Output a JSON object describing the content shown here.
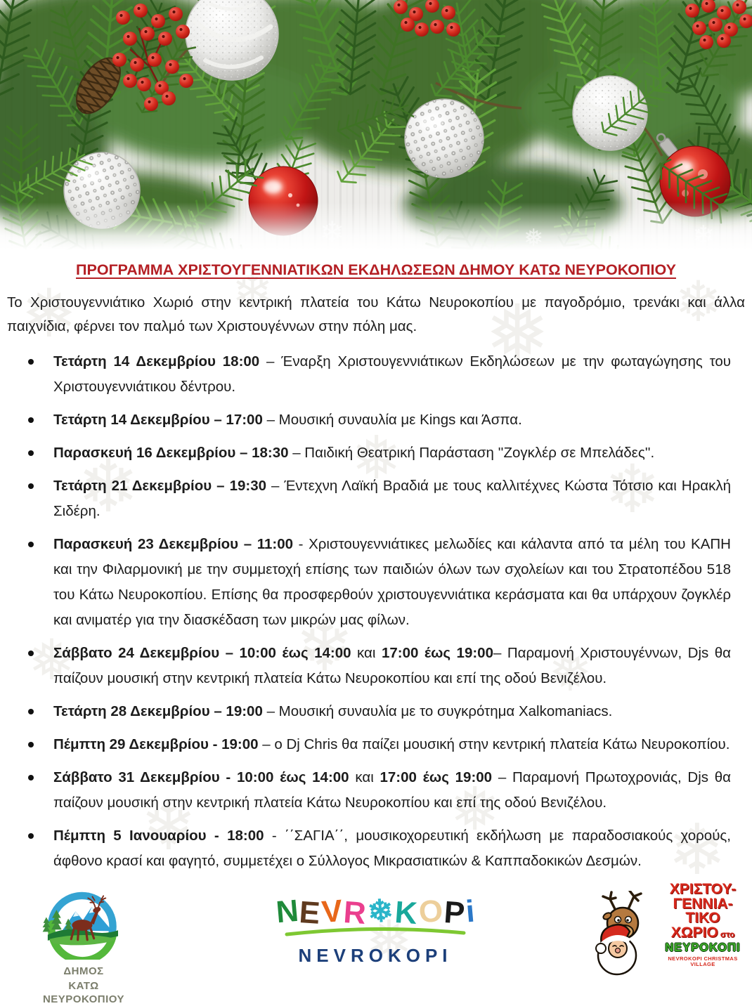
{
  "document": {
    "title": "ΠΡΟΓΡΑΜΜΑ ΧΡΙΣΤΟΥΓΕΝΝΙΑΤΙΚΩΝ ΕΚΔΗΛΩΣΕΩΝ ΔΗΜΟΥ ΚΑΤΩ ΝΕΥΡΟΚΟΠΙΟΥ",
    "intro": "Το Χριστουγεννιάτικο Χωριό στην κεντρική πλατεία του Κάτω Νευροκοπίου με παγοδρόμιο, τρενάκι και άλλα παιχνίδια,  φέρνει τον παλμό των Χριστουγέννων στην πόλη μας."
  },
  "theme": {
    "title_color": "#b41f24",
    "text_color": "#1c1c1c",
    "fir_green_dark": "#2d5a1e",
    "fir_green": "#3e7224",
    "fir_green_light": "#61a13a",
    "bauble_red": "#c11515",
    "bauble_silver": "#d9d9d5",
    "berry_red": "#c01310"
  },
  "events": [
    {
      "segments": [
        {
          "text": "Τετάρτη 14 Δεκεμβρίου 18:00",
          "bold": true
        },
        {
          "text": " – Έναρξη Χριστουγεννιάτικων Εκδηλώσεων με την φωταγώγησης του Χριστουγεννιάτικου δέντρου.",
          "bold": false
        }
      ]
    },
    {
      "segments": [
        {
          "text": "Τετάρτη 14 Δεκεμβρίου – 17:00",
          "bold": true
        },
        {
          "text": " – Μουσική συναυλία με Kings και Άσπα.",
          "bold": false
        }
      ]
    },
    {
      "segments": [
        {
          "text": "Παρασκευή 16 Δεκεμβρίου – 18:30",
          "bold": true
        },
        {
          "text": " – Παιδική Θεατρική Παράσταση ''Ζογκλέρ σε Μπελάδες''.",
          "bold": false
        }
      ]
    },
    {
      "segments": [
        {
          "text": "Τετάρτη 21 Δεκεμβρίου – 19:30",
          "bold": true
        },
        {
          "text": " – Έντεχνη Λαϊκή Βραδιά με τους καλλιτέχνες Κώστα Τότσιο και Ηρακλή Σιδέρη.",
          "bold": false
        }
      ]
    },
    {
      "segments": [
        {
          "text": "Παρασκευή 23 Δεκεμβρίου – 11:00",
          "bold": true
        },
        {
          "text": "  - Χριστουγεννιάτικες μελωδίες και κάλαντα από τα μέλη του ΚΑΠΗ και την Φιλαρμονική με την συμμετοχή επίσης των παιδιών όλων των σχολείων και του Στρατοπέδου 518 του Κάτω Νευροκοπίου. Επίσης θα προσφερθούν χριστουγεννιάτικα κεράσματα και θα υπάρχουν ζογκλέρ και ανιματέρ για την διασκέδαση των μικρών μας φίλων.",
          "bold": false
        }
      ]
    },
    {
      "segments": [
        {
          "text": "Σάββατο 24 Δεκεμβρίου – 10:00 έως 14:00",
          "bold": true
        },
        {
          "text": " και ",
          "bold": false
        },
        {
          "text": "17:00  έως 19:00",
          "bold": true
        },
        {
          "text": "–  Παραμονή Χριστουγέννων, Djs θα παίζουν μουσική στην κεντρική πλατεία Κάτω Νευροκοπίου και επί της οδού Βενιζέλου.",
          "bold": false
        }
      ]
    },
    {
      "segments": [
        {
          "text": "Τετάρτη 28 Δεκεμβρίου – 19:00",
          "bold": true
        },
        {
          "text": "  – Μουσική συναυλία με το συγκρότημα Xalkomaniacs.",
          "bold": false
        }
      ]
    },
    {
      "segments": [
        {
          "text": "Πέμπτη 29 Δεκεμβρίου  - 19:00",
          "bold": true
        },
        {
          "text": "  – ο Dj Chris θα παίζει μουσική στην κεντρική πλατεία Κάτω Νευροκοπίου.",
          "bold": false
        }
      ]
    },
    {
      "segments": [
        {
          "text": "Σάββατο 31 Δεκεμβρίου - 10:00 έως 14:00",
          "bold": true
        },
        {
          "text": " και ",
          "bold": false
        },
        {
          "text": "17:00  έως 19:00",
          "bold": true
        },
        {
          "text": " –  Παραμονή Πρωτοχρονιάς,  Djs θα παίζουν μουσική στην κεντρική πλατεία Κάτω Νευροκοπίου και επί της οδού Βενιζέλου.",
          "bold": false
        }
      ]
    },
    {
      "segments": [
        {
          "text": "Πέμπτη 5 Ιανουαρίου  -  18:00",
          "bold": true
        },
        {
          "text": "  -  ΄΄ΣΑΓΙΑ΄΄, μουσικοχορευτική εκδήλωση με παραδοσιακούς χορούς, άφθονο κρασί και φαγητό, συμμετέχει ο Σύλλογος Μικρασιατικών & Καππαδοκικών Δεσμών.",
          "bold": false
        }
      ]
    }
  ],
  "footer": {
    "municipality_logo": {
      "line1": "ΔΗΜΟΣ",
      "line2": "ΚΑΤΩ ΝΕΥΡΟΚΟΠΙΟΥ"
    },
    "nevrokopi_logo": {
      "letters": [
        {
          "ch": "N",
          "color": "#1f8a3a"
        },
        {
          "ch": "E",
          "color": "#5f3a1f"
        },
        {
          "ch": "V",
          "color": "#e8671a"
        },
        {
          "ch": "R",
          "color": "#ea3f8e"
        },
        {
          "ch": "❄",
          "color": "#2ab5c9"
        },
        {
          "ch": "K",
          "color": "#19a89b"
        },
        {
          "ch": "O",
          "color": "#edcf9b"
        },
        {
          "ch": "P",
          "color": "#1a1a1a"
        },
        {
          "ch": "i",
          "color": "#2b78c8"
        }
      ],
      "wordmark": "NEVROKOPI"
    },
    "christmas_village_logo": {
      "lines": [
        "ΧΡΙΣΤΟΥ-",
        "ΓΕΝΝΙΑ-",
        "ΤΙΚΟ",
        "ΧΩΡΙΟ"
      ],
      "connector": "στο",
      "place": "ΝΕΥΡΟΚΟΠΙ",
      "tagline": "NEVROKOPI CHRISTMAS VILLAGE"
    }
  },
  "decor": {
    "snowflake_glyph": "❅",
    "snowflake_glyph_alt": "❄"
  }
}
